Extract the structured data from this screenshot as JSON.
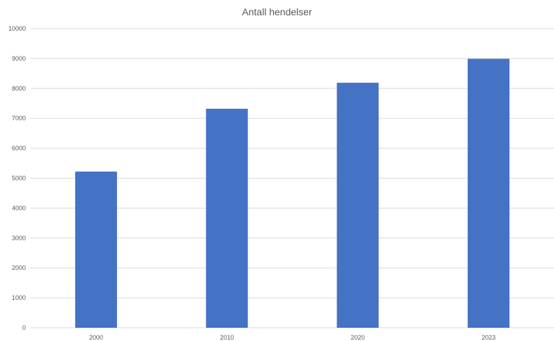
{
  "chart_data": {
    "type": "bar",
    "title": "Antall hendelser",
    "categories": [
      "2000",
      "2010",
      "2020",
      "2023"
    ],
    "values": [
      5220,
      7320,
      8190,
      8990
    ],
    "xlabel": "",
    "ylabel": "",
    "ylim": [
      0,
      10000
    ],
    "yticks": [
      "0",
      "1000",
      "2000",
      "3000",
      "4000",
      "5000",
      "6000",
      "7000",
      "8000",
      "9000",
      "10000"
    ],
    "grid": true,
    "legend": "none",
    "bar_color": "#4472C4",
    "grid_color": "#D9D9D9"
  }
}
